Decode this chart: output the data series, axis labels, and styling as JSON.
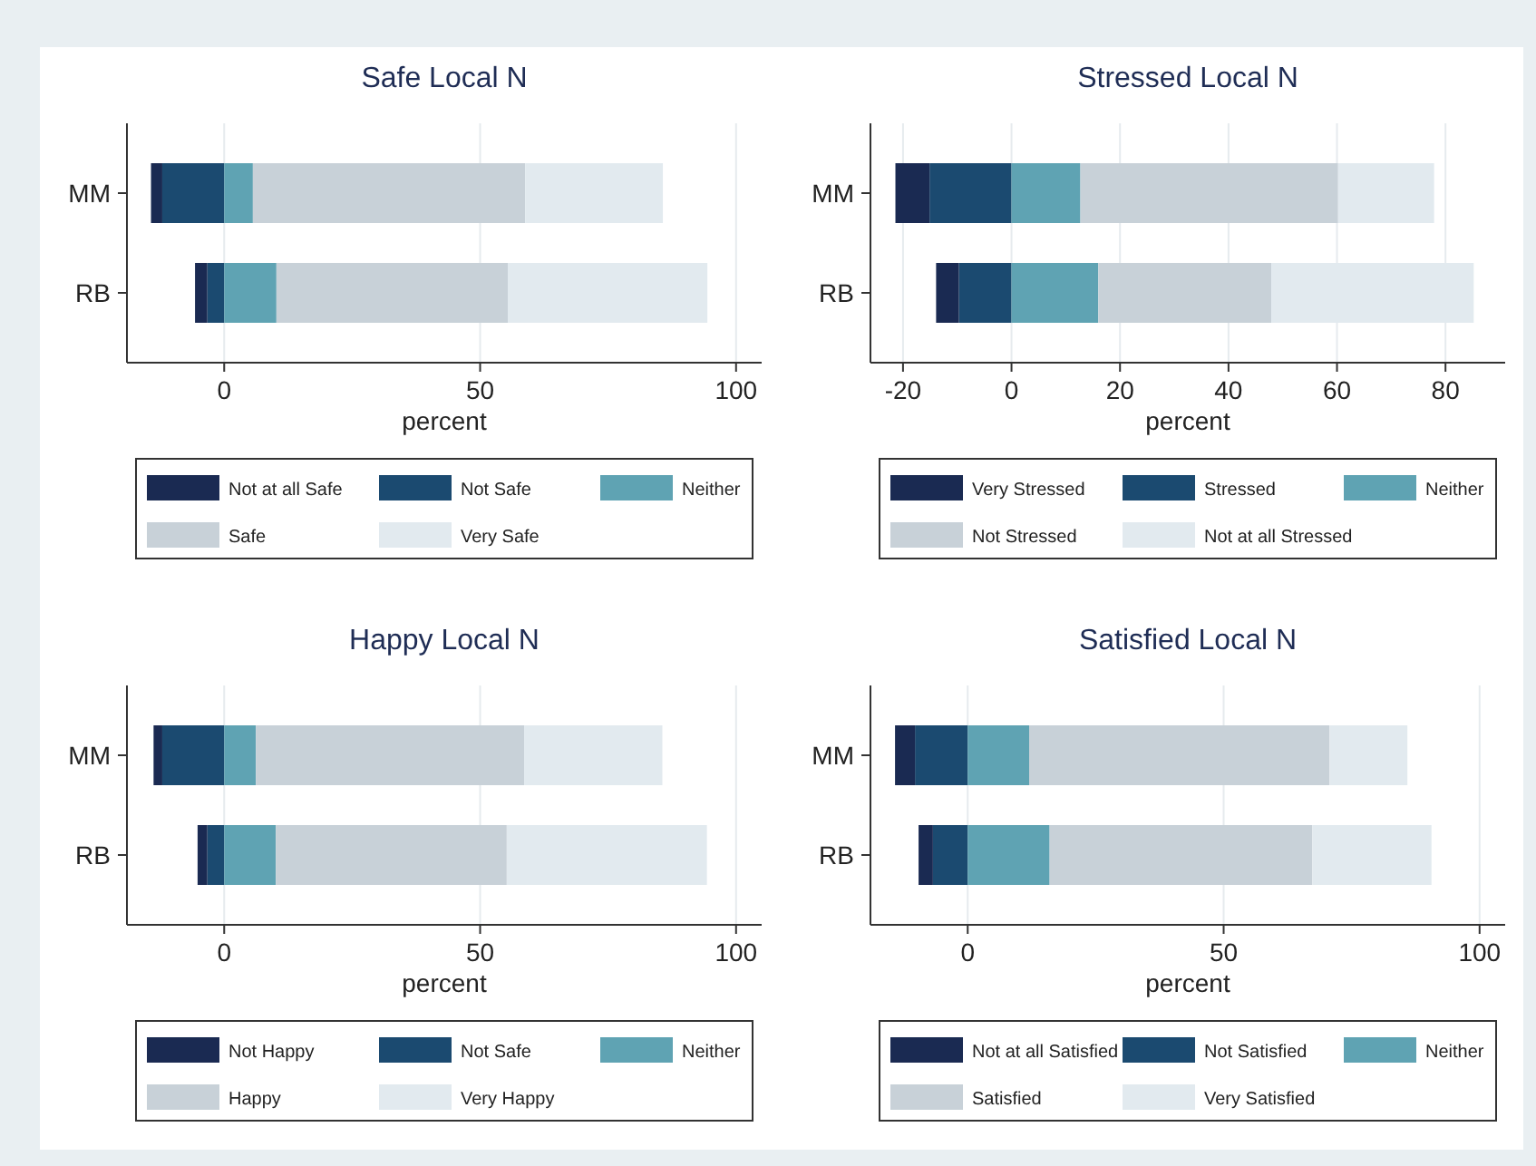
{
  "chart_data": [
    {
      "type": "bar",
      "orientation": "horizontal",
      "stacked": true,
      "title": "Safe Local N",
      "xlabel": "percent",
      "categories": [
        "MM",
        "RB"
      ],
      "xlim": [
        -19,
        105
      ],
      "xticks": [
        0,
        50,
        100
      ],
      "grid": "x",
      "legend": "bottom",
      "series": [
        {
          "name": "Not Safe",
          "color": "#1b4a70",
          "values": [
            -12.1,
            -3.3
          ]
        },
        {
          "name": "Not at all Safe",
          "color": "#1a2a52",
          "values": [
            -2.2,
            -2.4
          ]
        },
        {
          "name": "Neither",
          "color": "#5fa3b3",
          "values": [
            5.6,
            10.2
          ]
        },
        {
          "name": "Safe",
          "color": "#c8d1d8",
          "values": [
            53.2,
            45.2
          ]
        },
        {
          "name": "Very Safe",
          "color": "#e2eaef",
          "values": [
            26.9,
            39
          ]
        }
      ]
    },
    {
      "type": "bar",
      "orientation": "horizontal",
      "stacked": true,
      "title": "Stressed Local N",
      "xlabel": "percent",
      "categories": [
        "MM",
        "RB"
      ],
      "xlim": [
        -26,
        91
      ],
      "xticks": [
        -20,
        0,
        20,
        40,
        60,
        80
      ],
      "grid": "x",
      "legend": "bottom",
      "series": [
        {
          "name": "Stressed",
          "color": "#1b4a70",
          "values": [
            -15.1,
            -9.7
          ]
        },
        {
          "name": "Very Stressed",
          "color": "#1a2a52",
          "values": [
            -6.3,
            -4.2
          ]
        },
        {
          "name": "Neither",
          "color": "#5fa3b3",
          "values": [
            12.7,
            16
          ]
        },
        {
          "name": "Not Stressed",
          "color": "#c8d1d8",
          "values": [
            47.5,
            31.9
          ]
        },
        {
          "name": "Not at all Stressed",
          "color": "#e2eaef",
          "values": [
            17.7,
            37.3
          ]
        }
      ]
    },
    {
      "type": "bar",
      "orientation": "horizontal",
      "stacked": true,
      "title": "Happy Local N",
      "xlabel": "percent",
      "categories": [
        "MM",
        "RB"
      ],
      "xlim": [
        -19,
        105
      ],
      "xticks": [
        0,
        50,
        100
      ],
      "grid": "x",
      "legend": "bottom",
      "series": [
        {
          "name": "Not Safe",
          "color": "#1b4a70",
          "values": [
            -12.1,
            -3.3
          ]
        },
        {
          "name": "Not Happy",
          "color": "#1a2a52",
          "values": [
            -1.7,
            -1.9
          ]
        },
        {
          "name": "Neither",
          "color": "#5fa3b3",
          "values": [
            6.2,
            10.1
          ]
        },
        {
          "name": "Happy",
          "color": "#c8d1d8",
          "values": [
            52.4,
            45.1
          ]
        },
        {
          "name": "Very Happy",
          "color": "#e2eaef",
          "values": [
            27,
            39.1
          ]
        }
      ]
    },
    {
      "type": "bar",
      "orientation": "horizontal",
      "stacked": true,
      "title": "Satisfied Local N",
      "xlabel": "percent",
      "categories": [
        "MM",
        "RB"
      ],
      "xlim": [
        -19,
        105
      ],
      "xticks": [
        0,
        50,
        100
      ],
      "grid": "x",
      "legend": "bottom",
      "series": [
        {
          "name": "Not Satisfied",
          "color": "#1b4a70",
          "values": [
            -10.3,
            -6.8
          ]
        },
        {
          "name": "Not at all Satisfied",
          "color": "#1a2a52",
          "values": [
            -3.9,
            -2.8
          ]
        },
        {
          "name": "Neither",
          "color": "#5fa3b3",
          "values": [
            12,
            16
          ]
        },
        {
          "name": "Satisfied",
          "color": "#c8d1d8",
          "values": [
            58.7,
            51.3
          ]
        },
        {
          "name": "Very Satisfied",
          "color": "#e2eaef",
          "values": [
            15.2,
            23.3
          ]
        }
      ]
    }
  ]
}
